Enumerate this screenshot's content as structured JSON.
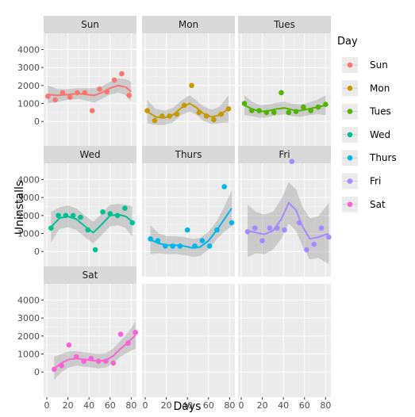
{
  "chart_data": {
    "type": "scatter",
    "facet_layout": "wrap",
    "xlabel": "Days",
    "ylabel": "Uninstalls",
    "xlim": [
      -3,
      85
    ],
    "ylim": [
      -1400,
      4900
    ],
    "x_ticks": [
      0,
      20,
      40,
      60,
      80
    ],
    "x_tick_labels": [
      "0",
      "20",
      "40",
      "60",
      "80"
    ],
    "y_ticks": [
      0,
      1000,
      2000,
      3000,
      4000
    ],
    "y_tick_labels": [
      "0",
      "1000",
      "2000",
      "3000",
      "4000"
    ],
    "grid": true,
    "legend": {
      "title": "Day",
      "position": "right",
      "entries": [
        "Sun",
        "Mon",
        "Tues",
        "Wed",
        "Thurs",
        "Fri",
        "Sat"
      ]
    },
    "colors": {
      "Sun": "#F8766D",
      "Mon": "#C49A00",
      "Tues": "#53B400",
      "Wed": "#00C094",
      "Thurs": "#00B6EB",
      "Fri": "#A58AFF",
      "Sat": "#FB61D7"
    },
    "series": [
      {
        "name": "Sun",
        "points": [
          [
            1,
            1400
          ],
          [
            8,
            1200
          ],
          [
            15,
            1600
          ],
          [
            22,
            1350
          ],
          [
            29,
            1600
          ],
          [
            36,
            1600
          ],
          [
            43,
            600
          ],
          [
            50,
            1800
          ],
          [
            57,
            1650
          ],
          [
            64,
            2300
          ],
          [
            71,
            2650
          ],
          [
            78,
            1450
          ]
        ],
        "smooth": [
          [
            1,
            1500
          ],
          [
            10,
            1450
          ],
          [
            20,
            1500
          ],
          [
            30,
            1550
          ],
          [
            38,
            1500
          ],
          [
            45,
            1450
          ],
          [
            52,
            1600
          ],
          [
            60,
            1850
          ],
          [
            68,
            2000
          ],
          [
            75,
            1900
          ],
          [
            80,
            1650
          ]
        ],
        "band": [
          [
            1,
            1000,
            2000
          ],
          [
            10,
            1100,
            1800
          ],
          [
            20,
            1200,
            1800
          ],
          [
            30,
            1250,
            1850
          ],
          [
            38,
            1150,
            1850
          ],
          [
            45,
            1050,
            1850
          ],
          [
            52,
            1250,
            1950
          ],
          [
            60,
            1500,
            2200
          ],
          [
            68,
            1600,
            2400
          ],
          [
            75,
            1450,
            2350
          ],
          [
            80,
            1100,
            2200
          ]
        ]
      },
      {
        "name": "Mon",
        "points": [
          [
            2,
            600
          ],
          [
            9,
            50
          ],
          [
            16,
            300
          ],
          [
            23,
            300
          ],
          [
            30,
            400
          ],
          [
            37,
            900
          ],
          [
            44,
            2000
          ],
          [
            51,
            500
          ],
          [
            58,
            300
          ],
          [
            65,
            100
          ],
          [
            72,
            400
          ],
          [
            79,
            700
          ]
        ],
        "smooth": [
          [
            2,
            550
          ],
          [
            10,
            250
          ],
          [
            18,
            200
          ],
          [
            26,
            350
          ],
          [
            34,
            750
          ],
          [
            42,
            1000
          ],
          [
            48,
            800
          ],
          [
            55,
            450
          ],
          [
            63,
            250
          ],
          [
            70,
            350
          ],
          [
            79,
            700
          ]
        ],
        "band": [
          [
            2,
            -100,
            1200
          ],
          [
            10,
            -200,
            700
          ],
          [
            18,
            -200,
            600
          ],
          [
            26,
            -50,
            750
          ],
          [
            34,
            350,
            1150
          ],
          [
            42,
            550,
            1450
          ],
          [
            48,
            400,
            1200
          ],
          [
            55,
            50,
            850
          ],
          [
            63,
            -150,
            650
          ],
          [
            70,
            -100,
            800
          ],
          [
            79,
            -50,
            1450
          ]
        ]
      },
      {
        "name": "Tues",
        "points": [
          [
            3,
            1000
          ],
          [
            10,
            600
          ],
          [
            17,
            600
          ],
          [
            24,
            500
          ],
          [
            31,
            500
          ],
          [
            38,
            1600
          ],
          [
            45,
            500
          ],
          [
            52,
            550
          ],
          [
            59,
            800
          ],
          [
            66,
            600
          ],
          [
            73,
            800
          ],
          [
            80,
            950
          ]
        ],
        "smooth": [
          [
            3,
            900
          ],
          [
            10,
            700
          ],
          [
            18,
            550
          ],
          [
            26,
            600
          ],
          [
            34,
            700
          ],
          [
            41,
            750
          ],
          [
            48,
            650
          ],
          [
            56,
            600
          ],
          [
            64,
            700
          ],
          [
            72,
            800
          ],
          [
            80,
            900
          ]
        ],
        "band": [
          [
            3,
            350,
            1450
          ],
          [
            10,
            300,
            1100
          ],
          [
            18,
            200,
            900
          ],
          [
            26,
            250,
            950
          ],
          [
            34,
            350,
            1050
          ],
          [
            41,
            400,
            1100
          ],
          [
            48,
            300,
            1000
          ],
          [
            56,
            250,
            950
          ],
          [
            64,
            350,
            1050
          ],
          [
            72,
            400,
            1200
          ],
          [
            80,
            350,
            1450
          ]
        ]
      },
      {
        "name": "Wed",
        "points": [
          [
            4,
            1300
          ],
          [
            11,
            2000
          ],
          [
            18,
            2000
          ],
          [
            25,
            2000
          ],
          [
            32,
            1900
          ],
          [
            39,
            1200
          ],
          [
            46,
            100
          ],
          [
            53,
            2200
          ],
          [
            60,
            2100
          ],
          [
            67,
            2000
          ],
          [
            74,
            2400
          ],
          [
            81,
            1600
          ]
        ],
        "smooth": [
          [
            4,
            1350
          ],
          [
            12,
            1850
          ],
          [
            20,
            1950
          ],
          [
            28,
            1800
          ],
          [
            36,
            1400
          ],
          [
            44,
            1050
          ],
          [
            52,
            1500
          ],
          [
            60,
            2000
          ],
          [
            68,
            2050
          ],
          [
            75,
            1950
          ],
          [
            81,
            1650
          ]
        ],
        "band": [
          [
            4,
            500,
            2200
          ],
          [
            12,
            1250,
            2450
          ],
          [
            20,
            1350,
            2550
          ],
          [
            28,
            1200,
            2400
          ],
          [
            36,
            800,
            2000
          ],
          [
            44,
            450,
            1650
          ],
          [
            52,
            900,
            2100
          ],
          [
            60,
            1400,
            2600
          ],
          [
            68,
            1450,
            2650
          ],
          [
            75,
            1300,
            2600
          ],
          [
            81,
            800,
            2500
          ]
        ]
      },
      {
        "name": "Thurs",
        "points": [
          [
            5,
            700
          ],
          [
            12,
            600
          ],
          [
            19,
            300
          ],
          [
            26,
            300
          ],
          [
            33,
            300
          ],
          [
            40,
            1200
          ],
          [
            47,
            300
          ],
          [
            54,
            600
          ],
          [
            61,
            300
          ],
          [
            68,
            1200
          ],
          [
            75,
            3600
          ],
          [
            82,
            1600
          ]
        ],
        "smooth": [
          [
            5,
            650
          ],
          [
            13,
            450
          ],
          [
            21,
            350
          ],
          [
            29,
            350
          ],
          [
            37,
            300
          ],
          [
            45,
            200
          ],
          [
            52,
            250
          ],
          [
            60,
            600
          ],
          [
            68,
            1200
          ],
          [
            75,
            1800
          ],
          [
            82,
            2400
          ]
        ],
        "band": [
          [
            5,
            -150,
            1450
          ],
          [
            13,
            -100,
            1000
          ],
          [
            21,
            -150,
            850
          ],
          [
            29,
            -150,
            850
          ],
          [
            37,
            -200,
            800
          ],
          [
            45,
            -300,
            700
          ],
          [
            52,
            -250,
            750
          ],
          [
            60,
            100,
            1100
          ],
          [
            68,
            700,
            1700
          ],
          [
            75,
            1100,
            2500
          ],
          [
            82,
            1400,
            3400
          ]
        ]
      },
      {
        "name": "Fri",
        "points": [
          [
            6,
            1100
          ],
          [
            13,
            1300
          ],
          [
            20,
            600
          ],
          [
            27,
            1300
          ],
          [
            34,
            1300
          ],
          [
            41,
            1200
          ],
          [
            48,
            5000
          ],
          [
            55,
            1600
          ],
          [
            62,
            100
          ],
          [
            69,
            400
          ],
          [
            76,
            1300
          ],
          [
            83,
            800
          ]
        ],
        "smooth": [
          [
            6,
            1150
          ],
          [
            14,
            1050
          ],
          [
            22,
            950
          ],
          [
            30,
            1150
          ],
          [
            38,
            1800
          ],
          [
            45,
            2700
          ],
          [
            52,
            2300
          ],
          [
            58,
            1400
          ],
          [
            65,
            700
          ],
          [
            73,
            800
          ],
          [
            83,
            1000
          ]
        ],
        "band": [
          [
            6,
            -300,
            2600
          ],
          [
            14,
            -100,
            2200
          ],
          [
            22,
            -150,
            2050
          ],
          [
            30,
            100,
            2200
          ],
          [
            38,
            700,
            2900
          ],
          [
            45,
            1550,
            3850
          ],
          [
            52,
            1150,
            3450
          ],
          [
            58,
            300,
            2500
          ],
          [
            65,
            -450,
            1850
          ],
          [
            73,
            -350,
            1950
          ],
          [
            83,
            -700,
            2700
          ]
        ]
      },
      {
        "name": "Sat",
        "points": [
          [
            7,
            150
          ],
          [
            14,
            350
          ],
          [
            21,
            1500
          ],
          [
            28,
            850
          ],
          [
            35,
            600
          ],
          [
            42,
            750
          ],
          [
            49,
            600
          ],
          [
            56,
            600
          ],
          [
            63,
            500
          ],
          [
            70,
            2100
          ],
          [
            77,
            1600
          ],
          [
            84,
            2200
          ]
        ],
        "smooth": [
          [
            7,
            200
          ],
          [
            14,
            500
          ],
          [
            21,
            700
          ],
          [
            28,
            750
          ],
          [
            35,
            700
          ],
          [
            42,
            650
          ],
          [
            49,
            600
          ],
          [
            56,
            650
          ],
          [
            63,
            900
          ],
          [
            70,
            1300
          ],
          [
            77,
            1650
          ],
          [
            84,
            2050
          ]
        ],
        "band": [
          [
            7,
            -450,
            850
          ],
          [
            14,
            0,
            1000
          ],
          [
            21,
            250,
            1150
          ],
          [
            28,
            350,
            1150
          ],
          [
            35,
            300,
            1100
          ],
          [
            42,
            250,
            1050
          ],
          [
            49,
            200,
            1000
          ],
          [
            56,
            250,
            1050
          ],
          [
            63,
            500,
            1300
          ],
          [
            70,
            850,
            1750
          ],
          [
            77,
            1100,
            2200
          ],
          [
            84,
            1300,
            2800
          ]
        ]
      }
    ]
  }
}
